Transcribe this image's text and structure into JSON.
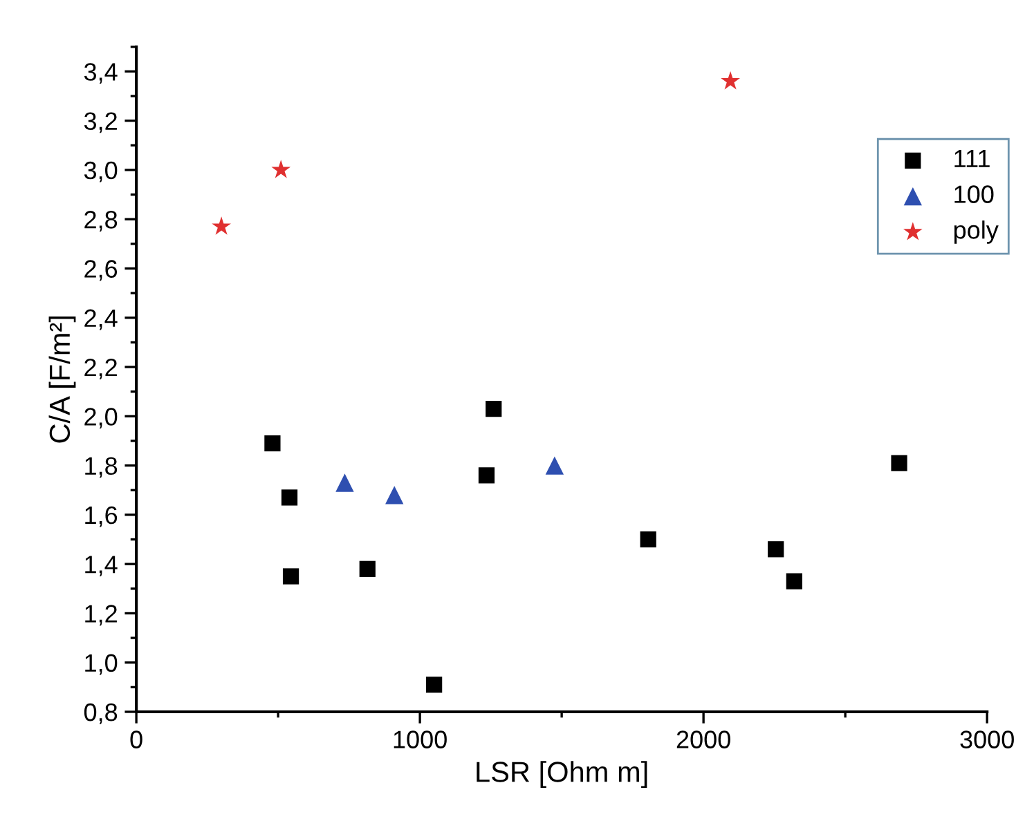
{
  "chart_data": {
    "type": "scatter",
    "xlabel": "LSR [Ohm m]",
    "ylabel": "C/A [F/m²]",
    "xlim": [
      0,
      3000
    ],
    "xticks": [
      0,
      1000,
      2000,
      3000
    ],
    "ylim": [
      0.8,
      3.5
    ],
    "yticks": [
      {
        "value": 0.8,
        "label": "0,8"
      },
      {
        "value": 1.0,
        "label": "1,0"
      },
      {
        "value": 1.2,
        "label": "1,2"
      },
      {
        "value": 1.4,
        "label": "1,4"
      },
      {
        "value": 1.6,
        "label": "1,6"
      },
      {
        "value": 1.8,
        "label": "1,8"
      },
      {
        "value": 2.0,
        "label": "2,0"
      },
      {
        "value": 2.2,
        "label": "2,2"
      },
      {
        "value": 2.4,
        "label": "2,4"
      },
      {
        "value": 2.6,
        "label": "2,6"
      },
      {
        "value": 2.8,
        "label": "2,8"
      },
      {
        "value": 3.0,
        "label": "3,0"
      },
      {
        "value": 3.2,
        "label": "3,2"
      },
      {
        "value": 3.4,
        "label": "3,4"
      }
    ],
    "grid": false,
    "legend": "top right",
    "series": [
      {
        "name": "111",
        "color": "#000000",
        "marker": "square",
        "x": [
          480,
          540,
          545,
          815,
          1050,
          1235,
          1260,
          1805,
          2255,
          2320,
          2690
        ],
        "values": [
          1.89,
          1.67,
          1.35,
          1.38,
          0.91,
          1.76,
          2.03,
          1.5,
          1.46,
          1.33,
          1.81
        ]
      },
      {
        "name": "100",
        "color": "#2e4fb0",
        "marker": "triangle",
        "x": [
          735,
          910,
          1475
        ],
        "values": [
          1.73,
          1.68,
          1.8
        ]
      },
      {
        "name": "poly",
        "color": "#e03030",
        "marker": "star",
        "x": [
          300,
          510,
          2095
        ],
        "values": [
          2.77,
          3.0,
          3.36
        ]
      }
    ]
  }
}
